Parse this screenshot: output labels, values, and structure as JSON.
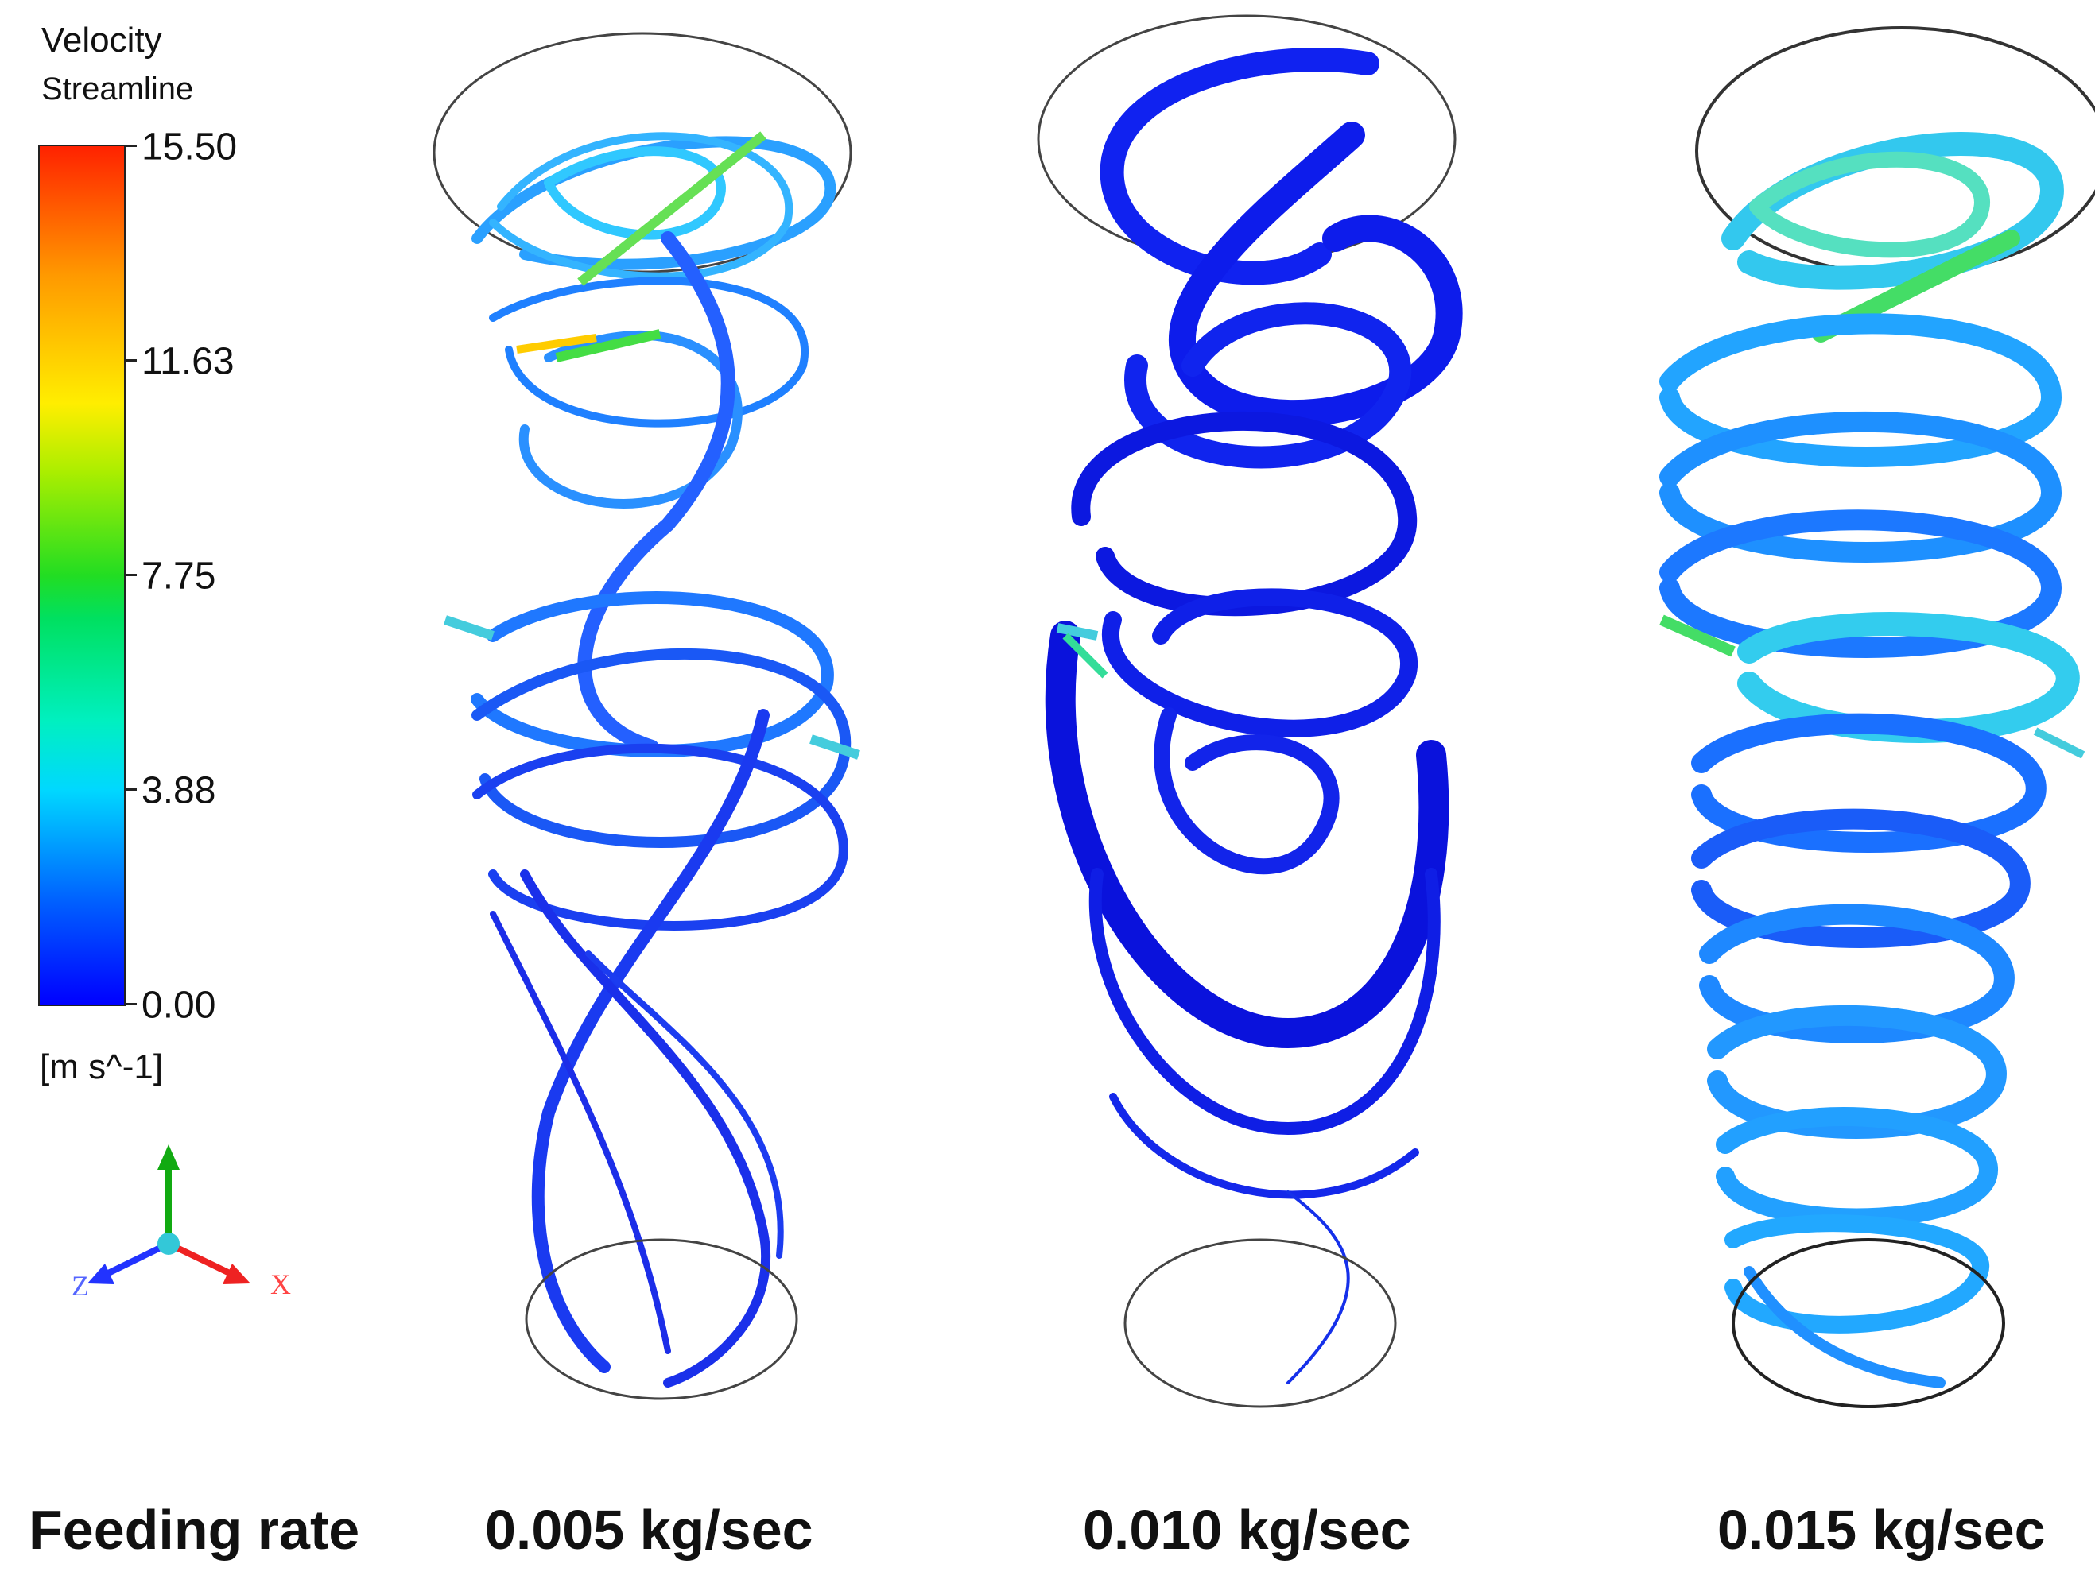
{
  "legend": {
    "title_line1": "Velocity",
    "title_line2": "Streamline",
    "unit": "[m s^-1]",
    "ticks": [
      "15.50",
      "11.63",
      "7.75",
      "3.88",
      "0.00"
    ],
    "tick_values": [
      15.5,
      11.63,
      7.75,
      3.88,
      0.0
    ],
    "colormap": [
      "#0000ff",
      "#00d8ff",
      "#22dd22",
      "#ffee00",
      "#ff2200"
    ]
  },
  "axes": {
    "x_label": "X",
    "z_label": "Z",
    "x_color": "#ff3333",
    "y_color": "#11aa11",
    "z_color": "#2233ff"
  },
  "captions": {
    "label": "Feeding rate",
    "rates": [
      "0.005 kg/sec",
      "0.010 kg/sec",
      "0.015 kg/sec"
    ]
  },
  "panels": [
    {
      "name": "streamlines-0.005",
      "dominant_colors": [
        "#1a3cf0",
        "#1e88ff",
        "#22c4ff",
        "#33dd66"
      ]
    },
    {
      "name": "streamlines-0.010",
      "dominant_colors": [
        "#0a14e6",
        "#1030f0",
        "#1f66ff"
      ]
    },
    {
      "name": "streamlines-0.015",
      "dominant_colors": [
        "#1a70ff",
        "#22aaff",
        "#33ccee",
        "#33dd77"
      ]
    }
  ]
}
